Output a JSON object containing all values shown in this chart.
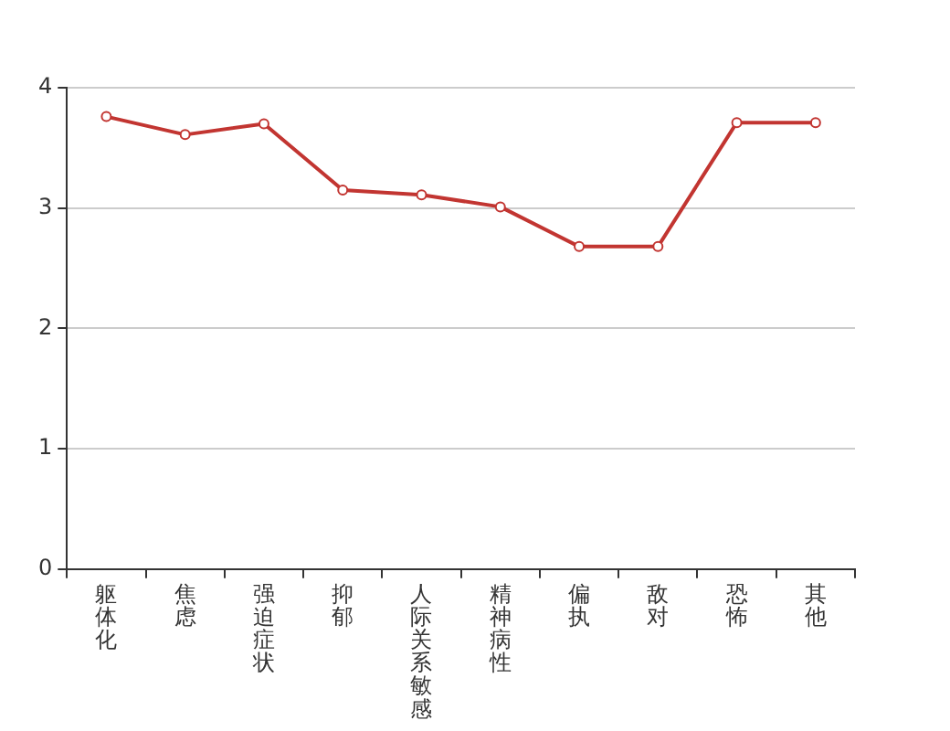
{
  "chart_data": {
    "type": "line",
    "categories": [
      "躯体化",
      "焦虑",
      "强迫症状",
      "抑郁",
      "人际关系敏感",
      "精神病性",
      "偏执",
      "敌对",
      "恐怖",
      "其他"
    ],
    "series": [
      {
        "color": "#c23531",
        "values": [
          3.76,
          3.61,
          3.7,
          3.15,
          3.11,
          3.01,
          2.68,
          2.68,
          3.71,
          3.71
        ]
      }
    ],
    "ylim": [
      0,
      4
    ],
    "yticks": [
      0,
      1,
      2,
      3,
      4
    ],
    "grid": "y",
    "legend": false,
    "marker": "circle",
    "line_style": "solid"
  }
}
